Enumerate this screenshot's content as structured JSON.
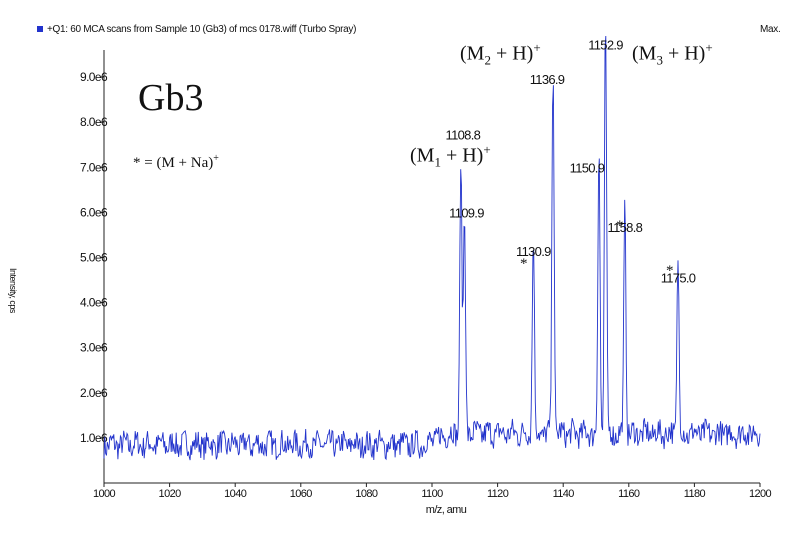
{
  "header": {
    "scan_title": "+Q1: 60 MCA scans from Sample 10 (Gb3) of mcs 0178.wiff (Turbo Spray)",
    "max_label": "Max.",
    "series_color": "#2233cc"
  },
  "annotations": {
    "compound": "Gb3",
    "sodium_note": "* = (M + Na)",
    "sodium_sup": "+",
    "m1": {
      "pre": "(M",
      "sub": "1",
      "post": " + H)",
      "sup": "+"
    },
    "m2": {
      "pre": "(M",
      "sub": "2",
      "post": " + H)",
      "sup": "+"
    },
    "m3": {
      "pre": "(M",
      "sub": "3",
      "post": " + H)",
      "sup": "+"
    },
    "star": "*"
  },
  "chart_data": {
    "type": "line",
    "xlabel": "m/z, amu",
    "ylabel": "Intensity, cps",
    "xlim": [
      1000,
      1200
    ],
    "ylim": [
      0,
      9.6
    ],
    "x_ticks": [
      "1000",
      "1020",
      "1040",
      "1060",
      "1080",
      "1100",
      "1120",
      "1140",
      "1160",
      "1180",
      "1200"
    ],
    "y_ticks": [
      {
        "value": 1,
        "label": "1.0e6"
      },
      {
        "value": 2,
        "label": "2.0e6"
      },
      {
        "value": 3,
        "label": "3.0e6"
      },
      {
        "value": 4,
        "label": "4.0e6"
      },
      {
        "value": 5,
        "label": "5.0e6"
      },
      {
        "value": 6,
        "label": "6.0e6"
      },
      {
        "value": 7,
        "label": "7.0e6"
      },
      {
        "value": 8,
        "label": "8.0e6"
      },
      {
        "value": 9,
        "label": "9.0e6"
      }
    ],
    "peaks": [
      {
        "mz": 1108.8,
        "intensity": 6.2,
        "label": "1108.8"
      },
      {
        "mz": 1109.9,
        "intensity": 5.0,
        "label": "1109.9"
      },
      {
        "mz": 1130.9,
        "intensity": 4.5,
        "label": "1130.9"
      },
      {
        "mz": 1136.9,
        "intensity": 8.4,
        "label": "1136.9"
      },
      {
        "mz": 1150.9,
        "intensity": 6.4,
        "label": "1150.9"
      },
      {
        "mz": 1152.9,
        "intensity": 9.3,
        "label": "1152.9"
      },
      {
        "mz": 1158.8,
        "intensity": 5.1,
        "label": "1158.8"
      },
      {
        "mz": 1175.0,
        "intensity": 4.0,
        "label": "1175.0"
      }
    ]
  }
}
